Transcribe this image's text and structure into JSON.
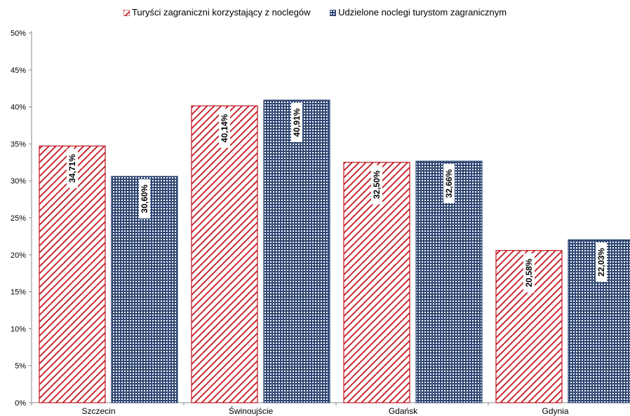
{
  "chart_data": {
    "type": "bar",
    "categories": [
      "Szczecin",
      "Świnoujście",
      "Gdańsk",
      "Gdynia"
    ],
    "series": [
      {
        "name": "Turyści zagraniczni korzystający z noclegów",
        "values": [
          34.71,
          40.14,
          32.5,
          20.58
        ],
        "labels": [
          "34,71%",
          "40,14%",
          "32,50%",
          "20,58%"
        ],
        "color": "#c0121b",
        "pattern": "diagonal-hatch"
      },
      {
        "name": "Udzielone noclegi turystom zagranicznym",
        "values": [
          30.6,
          40.91,
          32.66,
          22.03
        ],
        "labels": [
          "30,60%",
          "40,91%",
          "32,66%",
          "22,03%"
        ],
        "color": "#2f4774",
        "pattern": "grid"
      }
    ],
    "y_ticks": [
      "0%",
      "5%",
      "10%",
      "15%",
      "20%",
      "25%",
      "30%",
      "35%",
      "40%",
      "45%",
      "50%"
    ],
    "ylim": [
      0,
      50
    ],
    "grid": false,
    "legend_position": "top-center",
    "title": "",
    "xlabel": "",
    "ylabel": ""
  }
}
